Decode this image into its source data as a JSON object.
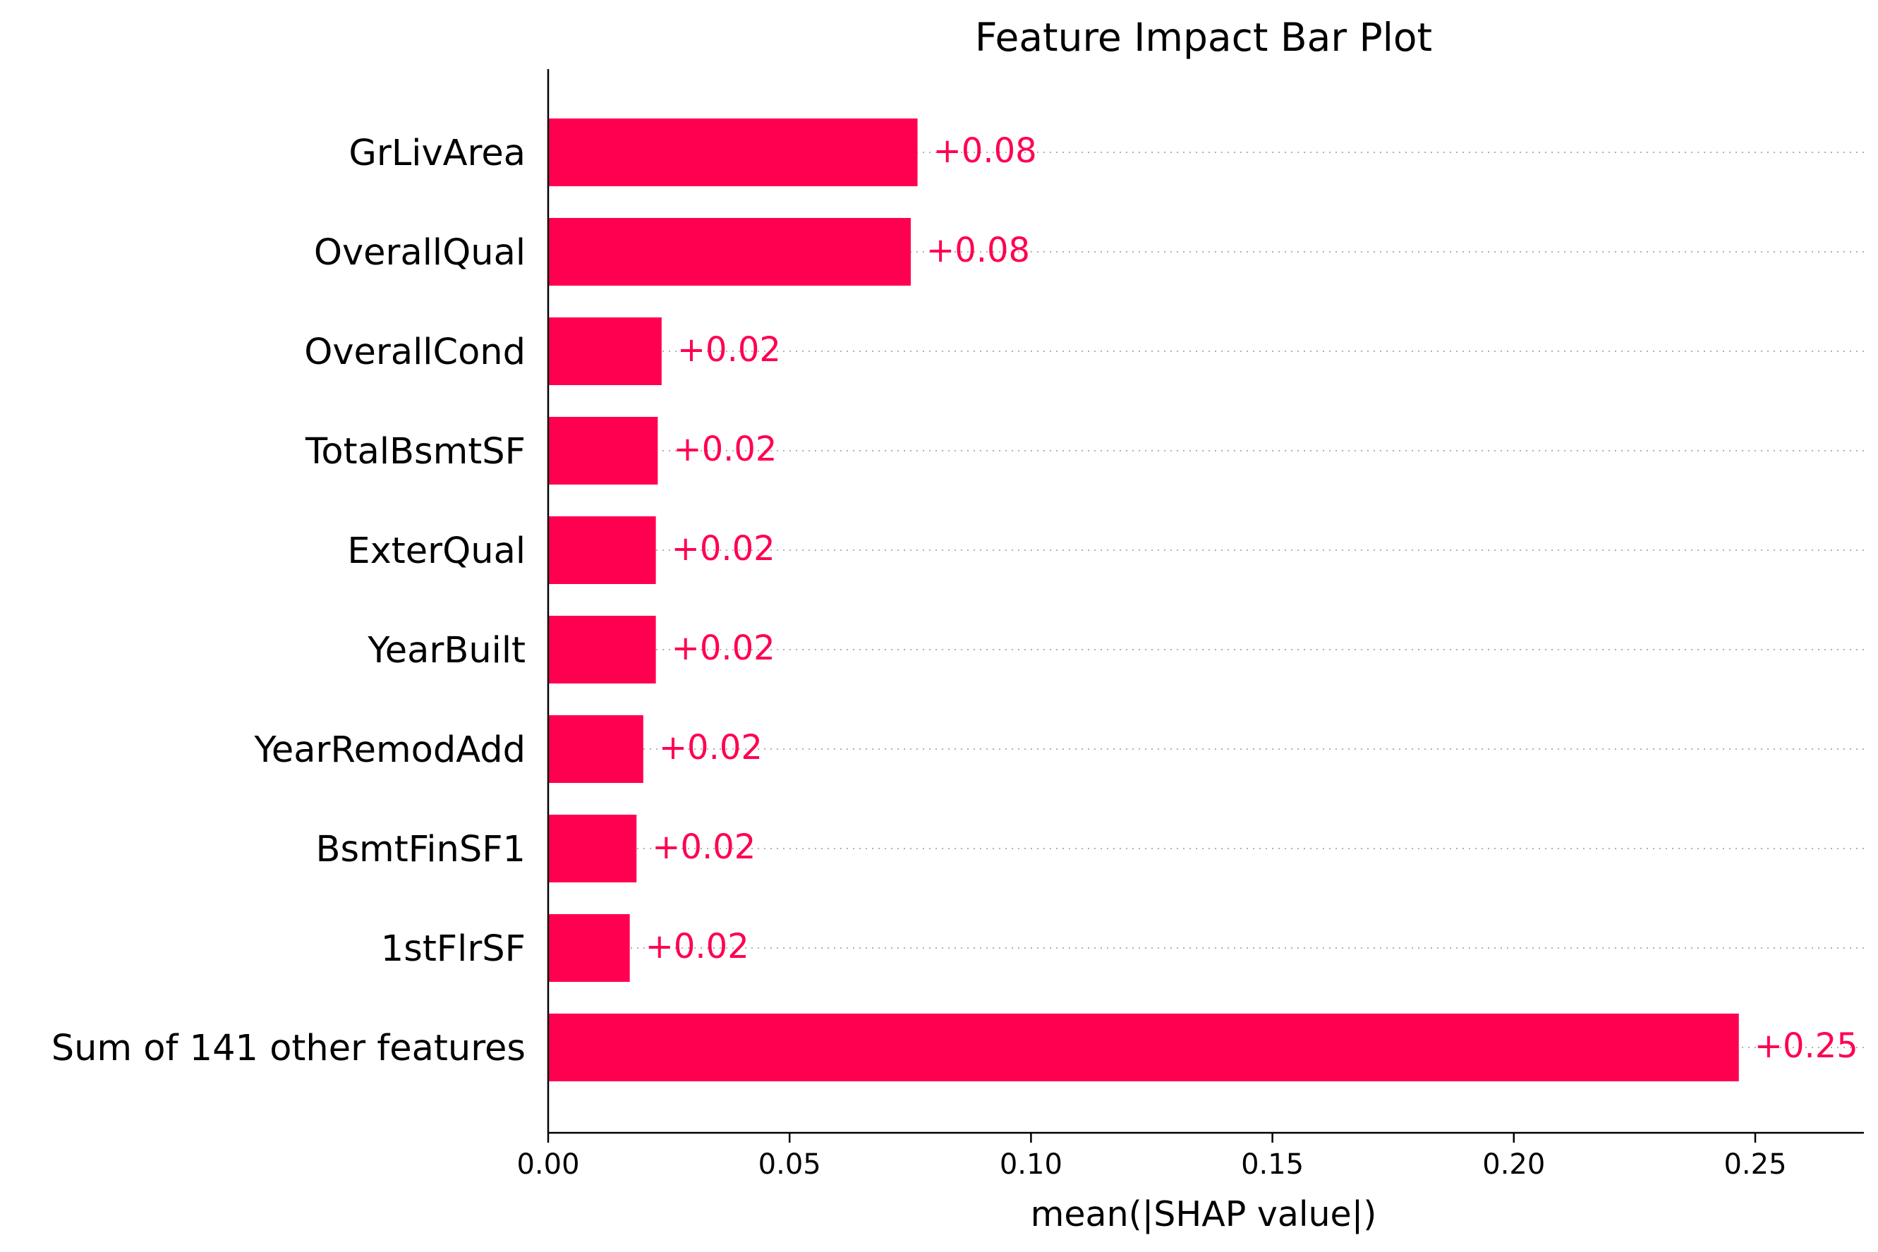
{
  "chart_data": {
    "type": "bar",
    "orientation": "horizontal",
    "title": "Feature Impact Bar Plot",
    "xlabel": "mean(|SHAP value|)",
    "ylabel": "",
    "xlim": [
      0,
      0.27
    ],
    "xticks": [
      "0.00",
      "0.05",
      "0.10",
      "0.15",
      "0.20",
      "0.25"
    ],
    "grid": "dotted horizontal guide line per bar",
    "legend": "none",
    "bar_color": "#ff0051",
    "categories": [
      "GrLivArea",
      "OverallQual",
      "OverallCond",
      "TotalBsmtSF",
      "ExterQual",
      "YearBuilt",
      "YearRemodAdd",
      "BsmtFinSF1",
      "1stFlrSF",
      "Sum of 141 other features"
    ],
    "values": [
      0.0765,
      0.0751,
      0.0235,
      0.0227,
      0.0223,
      0.0223,
      0.0197,
      0.0183,
      0.0169,
      0.2466
    ],
    "value_labels": [
      "+0.08",
      "+0.08",
      "+0.02",
      "+0.02",
      "+0.02",
      "+0.02",
      "+0.02",
      "+0.02",
      "+0.02",
      "+0.25"
    ]
  }
}
